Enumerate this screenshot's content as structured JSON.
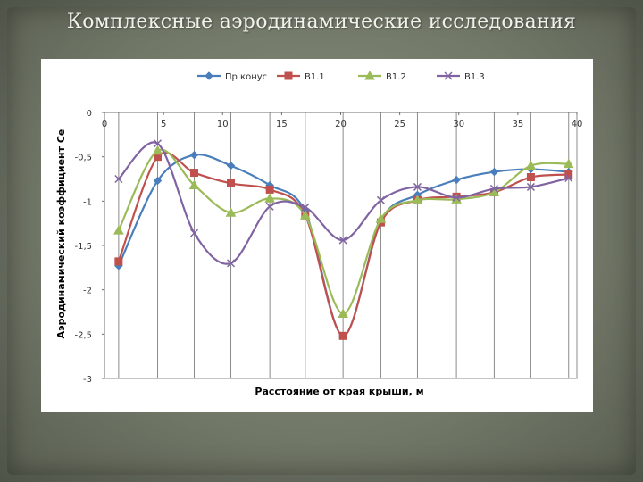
{
  "slide": {
    "title": "Комплексные аэродинамические исследования"
  },
  "chart_data": {
    "type": "line",
    "xlabel": "Расстояние от края крыши, м",
    "ylabel": "Аэродинамический коэффициент Се",
    "xlim": [
      0,
      40
    ],
    "ylim": [
      -3,
      0
    ],
    "xticks": [
      "0",
      "5",
      "10",
      "15",
      "20",
      "25",
      "30",
      "35",
      "40"
    ],
    "yticks": [
      "0",
      "-0,5",
      "-1",
      "-1,5",
      "-2",
      "-2,5",
      "-3"
    ],
    "vertical_gridlines_x": [
      1.2,
      4.5,
      7.6,
      10.7,
      14,
      17,
      20.2,
      23.4,
      26.5,
      29.8,
      33,
      36.1,
      39.3
    ],
    "legend_position": "top",
    "series": [
      {
        "name": "Пр конус",
        "color": "#4a7ebb",
        "marker": "diamond",
        "x": [
          1.2,
          4.5,
          7.6,
          10.7,
          14,
          17,
          20.2,
          23.4,
          26.5,
          29.8,
          33,
          36.1,
          39.3
        ],
        "y": [
          -1.73,
          -0.77,
          -0.48,
          -0.6,
          -0.82,
          -1.12,
          -2.52,
          -1.22,
          -0.93,
          -0.76,
          -0.67,
          -0.64,
          -0.67
        ]
      },
      {
        "name": "В1.1",
        "color": "#c0504d",
        "marker": "square",
        "x": [
          1.2,
          4.5,
          7.6,
          10.7,
          14,
          17,
          20.2,
          23.4,
          26.5,
          29.8,
          33,
          36.1,
          39.3
        ],
        "y": [
          -1.68,
          -0.5,
          -0.68,
          -0.8,
          -0.87,
          -1.16,
          -2.52,
          -1.24,
          -0.99,
          -0.95,
          -0.9,
          -0.73,
          -0.7
        ]
      },
      {
        "name": "В1.2",
        "color": "#9bbb59",
        "marker": "triangle",
        "x": [
          1.2,
          4.5,
          7.6,
          10.7,
          14,
          17,
          20.2,
          23.4,
          26.5,
          29.8,
          33,
          36.1,
          39.3
        ],
        "y": [
          -1.33,
          -0.43,
          -0.82,
          -1.13,
          -0.97,
          -1.16,
          -2.27,
          -1.2,
          -0.99,
          -0.98,
          -0.9,
          -0.6,
          -0.58
        ]
      },
      {
        "name": "В1.3",
        "color": "#8064a2",
        "marker": "x",
        "x": [
          1.2,
          4.5,
          7.6,
          10.7,
          14,
          17,
          20.2,
          23.4,
          26.5,
          29.8,
          33,
          36.1,
          39.3
        ],
        "y": [
          -0.75,
          -0.35,
          -1.36,
          -1.7,
          -1.06,
          -1.07,
          -1.44,
          -0.99,
          -0.84,
          -0.96,
          -0.86,
          -0.84,
          -0.74
        ]
      }
    ]
  }
}
